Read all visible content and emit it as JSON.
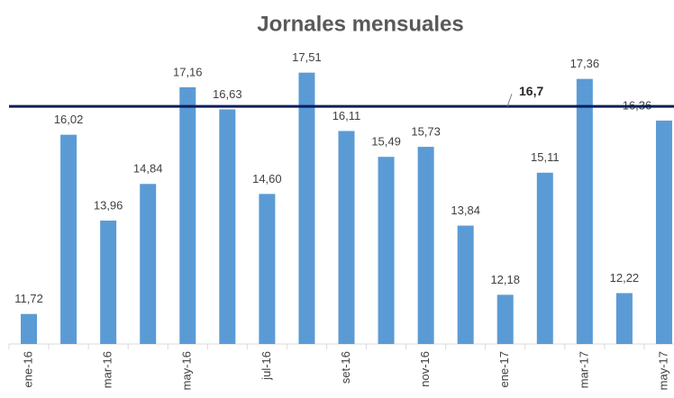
{
  "chart_data": {
    "type": "bar",
    "title": "Jornales mensuales",
    "categories": [
      "ene-16",
      null,
      "mar-16",
      null,
      "may-16",
      null,
      "jul-16",
      null,
      "set-16",
      null,
      "nov-16",
      null,
      "ene-17",
      null,
      "mar-17",
      null,
      "may-17"
    ],
    "values": [
      11.72,
      16.02,
      13.96,
      14.84,
      17.16,
      16.63,
      14.6,
      17.51,
      16.11,
      15.49,
      15.73,
      13.84,
      12.18,
      15.11,
      17.36,
      12.22,
      16.36
    ],
    "value_labels": [
      "11,72",
      "16,02",
      "13,96",
      "14,84",
      "17,16",
      "16,63",
      "14,60",
      "17,51",
      "16,11",
      "15,49",
      "15,73",
      "13,84",
      "12,18",
      "15,11",
      "17,36",
      "12,22",
      "16,36"
    ],
    "color": "#5b9bd5",
    "ylim": [
      11,
      18
    ],
    "reference_line": {
      "value": 16.7,
      "label": "16,7",
      "color": "#002060"
    }
  }
}
